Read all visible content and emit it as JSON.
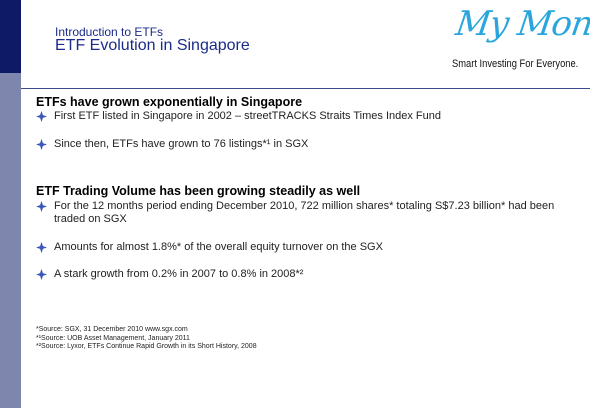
{
  "header": {
    "kicker": "Introduction to ETFs",
    "title": "ETF Evolution in Singapore"
  },
  "logo": {
    "script": "My Money",
    "tagline": "Smart Investing For Everyone."
  },
  "sections": [
    {
      "heading": "ETFs have grown exponentially in Singapore",
      "bullets": [
        "First ETF listed in Singapore in 2002 – streetTRACKS Straits Times Index Fund",
        "Since then, ETFs have grown to 76 listings*¹ in SGX"
      ]
    },
    {
      "heading": "ETF Trading Volume has been growing steadily as well",
      "bullets": [
        "For the 12 months period ending December 2010, 722 million shares* totaling S$7.23 billion* had been traded on SGX",
        "Amounts for almost 1.8%* of the overall equity turnover on the SGX",
        "A stark growth from 0.2% in 2007 to 0.8% in 2008*²"
      ]
    }
  ],
  "footnotes": [
    "*Source: SGX, 31 December 2010 www.sgx.com",
    "*¹Source: UOB Asset Management, January 2011",
    "*²Source: Lyxor, ETFs Continue Rapid Growth in its Short History, 2008"
  ],
  "colors": {
    "sidebar_dark": "#0f1a66",
    "sidebar_light": "#7f86ad",
    "title_blue": "#1a2b8a",
    "logo_blue": "#2aa6dc",
    "bullet_blue": "#3b57b8"
  },
  "icons": {
    "bullet": "four-point-diamond-icon"
  }
}
